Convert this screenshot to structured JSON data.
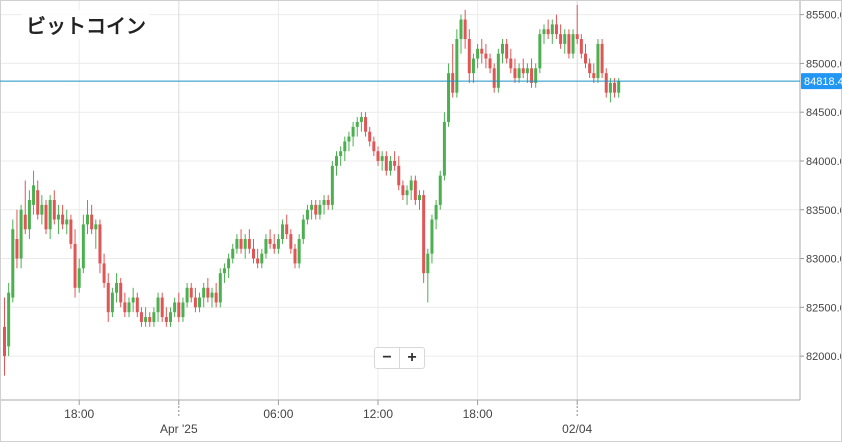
{
  "chart_data": {
    "type": "candlestick",
    "title": "ビットコイン",
    "ylim": [
      81550,
      85650
    ],
    "y_ticks": [
      "82000.0",
      "82500.0",
      "83000.0",
      "83500.0",
      "84000.0",
      "84500.0",
      "85000.0",
      "85500.0"
    ],
    "x_ticks": [
      {
        "label": "18:00",
        "index": 18,
        "major": false
      },
      {
        "label": "Apr '25",
        "index": 42,
        "major": true
      },
      {
        "label": "06:00",
        "index": 66,
        "major": false
      },
      {
        "label": "12:00",
        "index": 90,
        "major": false
      },
      {
        "label": "18:00",
        "index": 114,
        "major": false
      },
      {
        "label": "02/04",
        "index": 138,
        "major": true
      }
    ],
    "current_price": 84818.4,
    "current_price_label": "84818.4",
    "grid": true,
    "colors": {
      "up": "#4caf50",
      "down": "#e05656",
      "price_line": "#1e90c8",
      "price_tag": "#2196f3",
      "grid": "#ebebeb"
    },
    "candles": [
      [
        82300,
        82600,
        81800,
        82000
      ],
      [
        82100,
        82750,
        82000,
        82650
      ],
      [
        82600,
        83400,
        82550,
        83300
      ],
      [
        83200,
        83500,
        82900,
        83000
      ],
      [
        83000,
        83550,
        82900,
        83500
      ],
      [
        83450,
        83800,
        83250,
        83300
      ],
      [
        83300,
        83700,
        83200,
        83600
      ],
      [
        83550,
        83900,
        83450,
        83750
      ],
      [
        83700,
        83800,
        83400,
        83450
      ],
      [
        83450,
        83650,
        83350,
        83550
      ],
      [
        83550,
        83600,
        83250,
        83300
      ],
      [
        83300,
        83650,
        83200,
        83600
      ],
      [
        83600,
        83700,
        83350,
        83400
      ],
      [
        83400,
        83550,
        83250,
        83450
      ],
      [
        83450,
        83550,
        83300,
        83350
      ],
      [
        83350,
        83500,
        83250,
        83400
      ],
      [
        83400,
        83450,
        83100,
        83150
      ],
      [
        83150,
        83300,
        82600,
        82700
      ],
      [
        82700,
        83000,
        82650,
        82900
      ],
      [
        82900,
        83450,
        82850,
        83350
      ],
      [
        83350,
        83600,
        83250,
        83450
      ],
      [
        83450,
        83550,
        83250,
        83300
      ],
      [
        83300,
        83400,
        83100,
        83350
      ],
      [
        83350,
        83400,
        82850,
        82950
      ],
      [
        82950,
        83050,
        82700,
        82750
      ],
      [
        82750,
        82850,
        82350,
        82450
      ],
      [
        82450,
        82700,
        82400,
        82650
      ],
      [
        82650,
        82850,
        82550,
        82750
      ],
      [
        82750,
        82800,
        82500,
        82550
      ],
      [
        82550,
        82650,
        82400,
        82450
      ],
      [
        82450,
        82600,
        82400,
        82550
      ],
      [
        82550,
        82700,
        82450,
        82600
      ],
      [
        82600,
        82650,
        82400,
        82450
      ],
      [
        82450,
        82500,
        82300,
        82350
      ],
      [
        82350,
        82500,
        82300,
        82400
      ],
      [
        82400,
        82450,
        82300,
        82350
      ],
      [
        82350,
        82500,
        82300,
        82450
      ],
      [
        82450,
        82650,
        82350,
        82600
      ],
      [
        82600,
        82650,
        82350,
        82400
      ],
      [
        82400,
        82500,
        82300,
        82350
      ],
      [
        82350,
        82500,
        82300,
        82450
      ],
      [
        82450,
        82600,
        82400,
        82550
      ],
      [
        82550,
        82650,
        82350,
        82400
      ],
      [
        82400,
        82600,
        82350,
        82550
      ],
      [
        82550,
        82750,
        82500,
        82700
      ],
      [
        82700,
        82750,
        82550,
        82600
      ],
      [
        82600,
        82700,
        82450,
        82500
      ],
      [
        82500,
        82650,
        82450,
        82600
      ],
      [
        82600,
        82750,
        82500,
        82700
      ],
      [
        82700,
        82800,
        82550,
        82600
      ],
      [
        82600,
        82700,
        82500,
        82650
      ],
      [
        82650,
        82750,
        82500,
        82550
      ],
      [
        82550,
        82900,
        82500,
        82850
      ],
      [
        82850,
        82950,
        82750,
        82900
      ],
      [
        82900,
        83050,
        82800,
        83000
      ],
      [
        83000,
        83150,
        82950,
        83100
      ],
      [
        83100,
        83250,
        83050,
        83200
      ],
      [
        83200,
        83300,
        83050,
        83100
      ],
      [
        83100,
        83250,
        83000,
        83200
      ],
      [
        83200,
        83300,
        83050,
        83100
      ],
      [
        83100,
        83200,
        82950,
        83000
      ],
      [
        83000,
        83100,
        82900,
        82950
      ],
      [
        82950,
        83100,
        82900,
        83050
      ],
      [
        83050,
        83250,
        83000,
        83200
      ],
      [
        83200,
        83300,
        83100,
        83150
      ],
      [
        83150,
        83250,
        83050,
        83100
      ],
      [
        83100,
        83250,
        83050,
        83200
      ],
      [
        83200,
        83400,
        83150,
        83350
      ],
      [
        83350,
        83450,
        83200,
        83250
      ],
      [
        83250,
        83300,
        83050,
        83100
      ],
      [
        83100,
        83150,
        82900,
        82950
      ],
      [
        82950,
        83250,
        82900,
        83200
      ],
      [
        83200,
        83450,
        83150,
        83400
      ],
      [
        83400,
        83550,
        83350,
        83500
      ],
      [
        83500,
        83600,
        83400,
        83550
      ],
      [
        83550,
        83600,
        83400,
        83450
      ],
      [
        83450,
        83600,
        83400,
        83550
      ],
      [
        83550,
        83650,
        83450,
        83600
      ],
      [
        83600,
        83650,
        83500,
        83550
      ],
      [
        83550,
        84000,
        83500,
        83950
      ],
      [
        83950,
        84100,
        83850,
        84050
      ],
      [
        84050,
        84150,
        83950,
        84100
      ],
      [
        84100,
        84250,
        84000,
        84200
      ],
      [
        84200,
        84300,
        84100,
        84250
      ],
      [
        84250,
        84400,
        84150,
        84350
      ],
      [
        84350,
        84450,
        84250,
        84400
      ],
      [
        84400,
        84500,
        84300,
        84450
      ],
      [
        84450,
        84500,
        84250,
        84300
      ],
      [
        84300,
        84350,
        84150,
        84200
      ],
      [
        84200,
        84250,
        84050,
        84100
      ],
      [
        84100,
        84150,
        83950,
        84000
      ],
      [
        84000,
        84100,
        83900,
        84050
      ],
      [
        84050,
        84100,
        83850,
        83900
      ],
      [
        83900,
        84050,
        83850,
        84000
      ],
      [
        84000,
        84100,
        83900,
        83950
      ],
      [
        83950,
        84050,
        83700,
        83750
      ],
      [
        83750,
        83800,
        83600,
        83650
      ],
      [
        83650,
        83750,
        83550,
        83700
      ],
      [
        83700,
        83850,
        83600,
        83800
      ],
      [
        83800,
        83850,
        83550,
        83600
      ],
      [
        83600,
        83700,
        83500,
        83650
      ],
      [
        83650,
        83700,
        82750,
        82850
      ],
      [
        82850,
        83100,
        82550,
        83050
      ],
      [
        83050,
        83450,
        82950,
        83400
      ],
      [
        83400,
        83600,
        83300,
        83550
      ],
      [
        83550,
        83900,
        83500,
        83850
      ],
      [
        83850,
        84500,
        83800,
        84400
      ],
      [
        84400,
        85000,
        84350,
        84900
      ],
      [
        84900,
        85200,
        84650,
        84700
      ],
      [
        84700,
        85350,
        84650,
        85250
      ],
      [
        85250,
        85500,
        85100,
        85450
      ],
      [
        85450,
        85550,
        85150,
        85250
      ],
      [
        85250,
        85350,
        84800,
        84900
      ],
      [
        84900,
        85100,
        84800,
        85050
      ],
      [
        85050,
        85200,
        84950,
        85150
      ],
      [
        85150,
        85250,
        85000,
        85100
      ],
      [
        85100,
        85200,
        84950,
        85050
      ],
      [
        85050,
        85100,
        84900,
        84950
      ],
      [
        84950,
        85000,
        84700,
        84750
      ],
      [
        84750,
        85150,
        84700,
        85100
      ],
      [
        85100,
        85250,
        85000,
        85200
      ],
      [
        85200,
        85250,
        85000,
        85050
      ],
      [
        85050,
        85150,
        84900,
        84950
      ],
      [
        84950,
        85050,
        84800,
        84850
      ],
      [
        84850,
        85000,
        84800,
        84950
      ],
      [
        84950,
        85050,
        84850,
        84900
      ],
      [
        84900,
        85000,
        84800,
        84950
      ],
      [
        84950,
        85050,
        84750,
        84800
      ],
      [
        84800,
        85000,
        84750,
        84950
      ],
      [
        84950,
        85350,
        84900,
        85300
      ],
      [
        85300,
        85400,
        85200,
        85350
      ],
      [
        85350,
        85450,
        85250,
        85300
      ],
      [
        85300,
        85450,
        85200,
        85400
      ],
      [
        85400,
        85500,
        85250,
        85300
      ],
      [
        85300,
        85400,
        85150,
        85200
      ],
      [
        85200,
        85350,
        85100,
        85300
      ],
      [
        85300,
        85350,
        85050,
        85100
      ],
      [
        85100,
        85350,
        85050,
        85300
      ],
      [
        85300,
        85600,
        85200,
        85250
      ],
      [
        85250,
        85300,
        85050,
        85100
      ],
      [
        85100,
        85200,
        84950,
        85000
      ],
      [
        85000,
        85050,
        84850,
        84900
      ],
      [
        84900,
        85000,
        84800,
        84850
      ],
      [
        84850,
        85250,
        84800,
        85200
      ],
      [
        85200,
        85250,
        84850,
        84900
      ],
      [
        84900,
        84950,
        84650,
        84700
      ],
      [
        84700,
        84850,
        84600,
        84800
      ],
      [
        84800,
        84850,
        84650,
        84700
      ],
      [
        84700,
        84850,
        84650,
        84818
      ]
    ]
  },
  "zoom": {
    "minus_label": "−",
    "plus_label": "+"
  }
}
